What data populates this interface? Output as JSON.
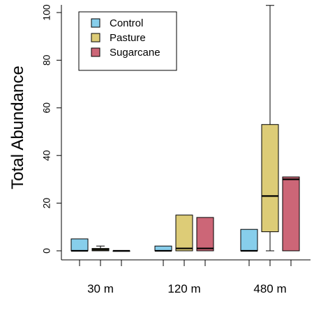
{
  "chart_data": {
    "type": "boxplot",
    "ylabel": "Total Abundance",
    "xlabel": "",
    "categories": [
      "30 m",
      "120 m",
      "480 m"
    ],
    "ylim": [
      0,
      100
    ],
    "yticks": [
      0,
      20,
      40,
      60,
      80,
      100
    ],
    "legend_position": "top-left",
    "series": [
      {
        "name": "Control",
        "color": "#87ceeb",
        "boxes": [
          {
            "category": "30 m",
            "min": 0,
            "q1": 0,
            "median": 0,
            "q3": 5,
            "max": 5
          },
          {
            "category": "120 m",
            "min": 0,
            "q1": 0,
            "median": 0,
            "q3": 2,
            "max": 2
          },
          {
            "category": "480 m",
            "min": 0,
            "q1": 0,
            "median": 0,
            "q3": 9,
            "max": 9
          }
        ]
      },
      {
        "name": "Pasture",
        "color": "#ddcc77",
        "boxes": [
          {
            "category": "30 m",
            "min": 0,
            "q1": 0,
            "median": 0.5,
            "q3": 1,
            "max": 2
          },
          {
            "category": "120 m",
            "min": 0,
            "q1": 0,
            "median": 1,
            "q3": 15,
            "max": 15
          },
          {
            "category": "480 m",
            "min": 0,
            "q1": 8,
            "median": 23,
            "q3": 53,
            "max": 103
          }
        ]
      },
      {
        "name": "Sugarcane",
        "color": "#cc6677",
        "boxes": [
          {
            "category": "30 m",
            "min": 0,
            "q1": 0,
            "median": 0,
            "q3": 0,
            "max": 0
          },
          {
            "category": "120 m",
            "min": 0,
            "q1": 0,
            "median": 1,
            "q3": 14,
            "max": 14
          },
          {
            "category": "480 m",
            "min": 0,
            "q1": 0,
            "median": 30,
            "q3": 31,
            "max": 31
          }
        ]
      }
    ]
  }
}
